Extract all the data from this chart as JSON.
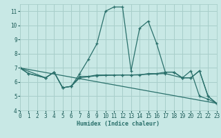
{
  "background_color": "#c8e8e5",
  "grid_color": "#a8ceca",
  "line_color": "#2a706b",
  "xlabel": "Humidex (Indice chaleur)",
  "xlim": [
    0,
    23
  ],
  "ylim": [
    4,
    11.5
  ],
  "yticks": [
    4,
    5,
    6,
    7,
    8,
    9,
    10,
    11
  ],
  "xticks": [
    0,
    1,
    2,
    3,
    4,
    5,
    6,
    7,
    8,
    9,
    10,
    11,
    12,
    13,
    14,
    15,
    16,
    17,
    18,
    19,
    20,
    21,
    22,
    23
  ],
  "series": [
    {
      "x": [
        0,
        1,
        3,
        4,
        5,
        6,
        7,
        8,
        9,
        10,
        11,
        12,
        13,
        14,
        15,
        16,
        17,
        18,
        19,
        20,
        21,
        22,
        23
      ],
      "y": [
        7.0,
        6.6,
        6.3,
        6.7,
        5.6,
        5.7,
        6.6,
        7.6,
        8.7,
        11.0,
        11.3,
        11.3,
        6.8,
        9.8,
        10.3,
        8.7,
        6.7,
        6.7,
        6.3,
        6.3,
        6.8,
        5.0,
        4.5
      ]
    },
    {
      "x": [
        0,
        1,
        3,
        4,
        5,
        6,
        7,
        8,
        9,
        10,
        11,
        12,
        13,
        14,
        15,
        16,
        17,
        18,
        19,
        20,
        21,
        22,
        23
      ],
      "y": [
        7.0,
        6.6,
        6.3,
        6.7,
        5.6,
        5.7,
        6.4,
        6.4,
        6.5,
        6.5,
        6.5,
        6.5,
        6.5,
        6.5,
        6.6,
        6.6,
        6.7,
        6.7,
        6.3,
        6.3,
        6.8,
        5.0,
        4.5
      ]
    },
    {
      "x": [
        0,
        3,
        4,
        5,
        6,
        7,
        9,
        12,
        13,
        17,
        19,
        20,
        21,
        22,
        23
      ],
      "y": [
        7.0,
        6.3,
        6.7,
        5.6,
        5.7,
        6.3,
        6.45,
        6.5,
        6.5,
        6.6,
        6.3,
        6.8,
        5.0,
        4.8,
        4.5
      ]
    },
    {
      "x": [
        0,
        23
      ],
      "y": [
        7.0,
        4.5
      ]
    }
  ]
}
